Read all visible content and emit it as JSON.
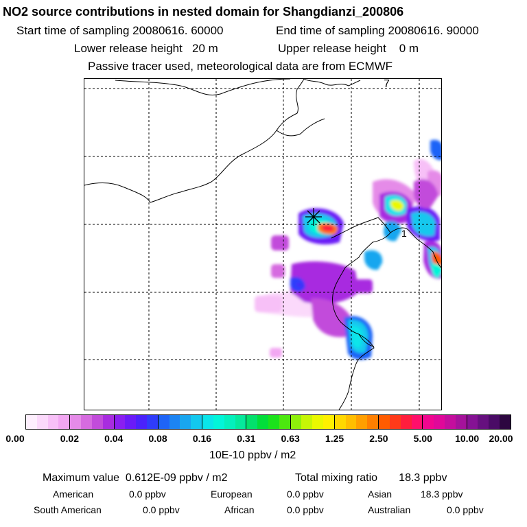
{
  "header": {
    "title": "NO2 source contributions in nested domain for Shangdianzi_200806",
    "start_label": "Start time of sampling",
    "start_value": "20080616. 60000",
    "end_label": "End time of sampling",
    "end_value": "20080616. 90000",
    "lower_label": "Lower release height",
    "lower_value": "20 m",
    "upper_label": "Upper release height",
    "upper_value": "0 m",
    "tracer_note": "Passive tracer used, meteorological data are from ECMWF"
  },
  "map": {
    "map_labels": [
      "7",
      "1"
    ],
    "receptor_marker": "station-star-icon"
  },
  "colorbar": {
    "ticks": [
      "0.00",
      "0.02",
      "0.04",
      "0.08",
      "0.16",
      "0.31",
      "0.63",
      "1.25",
      "2.50",
      "5.00",
      "10.00",
      "20.00"
    ],
    "unit": "10E-10 ppbv / m2",
    "colors": [
      [
        "#fdeffd",
        "#fbd9fb",
        "#f7c0f7",
        "#f2a7f2"
      ],
      [
        "#e58be8",
        "#d66be0",
        "#c24cdb",
        "#a82ce0"
      ],
      [
        "#8a1ff0",
        "#6a1bf7",
        "#4a22fb",
        "#2f3cfb"
      ],
      [
        "#1e64f7",
        "#1c84f3",
        "#19a6ef",
        "#13c8ee"
      ],
      [
        "#09e5ea",
        "#02f5d9",
        "#04f0bd",
        "#05e99c"
      ],
      [
        "#03e06c",
        "#02dd3a",
        "#1be21b",
        "#4ce80f"
      ],
      [
        "#8ff00a",
        "#c6f505",
        "#eaf800",
        "#fff000"
      ],
      [
        "#ffd800",
        "#ffbe00",
        "#ff9f00",
        "#ff7f00"
      ],
      [
        "#ff5c00",
        "#ff3a1a",
        "#ff1e3d",
        "#ff0f6b"
      ],
      [
        "#f1068f",
        "#e00899",
        "#c40e9d",
        "#a5129b"
      ],
      [
        "#851294",
        "#66107f",
        "#4a0b66",
        "#2d0740"
      ]
    ]
  },
  "stats": {
    "max_label": "Maximum value",
    "max_value": "0.612E-09 ppbv / m2",
    "total_label": "Total mixing ratio",
    "total_value": "18.3 ppbv",
    "regions": [
      {
        "name": "American",
        "value": "0.0 ppbv"
      },
      {
        "name": "European",
        "value": "0.0 ppbv"
      },
      {
        "name": "Asian",
        "value": "18.3 ppbv"
      },
      {
        "name": "South American",
        "value": "0.0 ppbv"
      },
      {
        "name": "African",
        "value": "0.0 ppbv"
      },
      {
        "name": "Australian",
        "value": "0.0 ppbv"
      }
    ]
  }
}
